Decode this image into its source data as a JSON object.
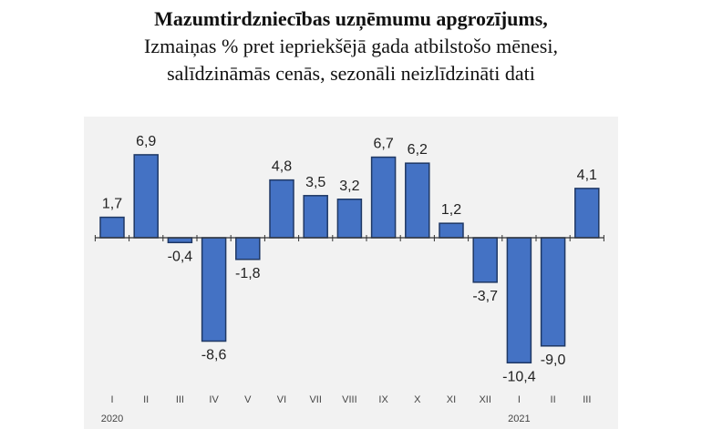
{
  "chart_data": {
    "type": "bar",
    "title": "Mazumtirdzniecības uzņēmumu apgrozījums,",
    "subtitle_lines": [
      "Izmaiņas % pret iepriekšējā gada atbilstošo mēnesi,",
      "salīdzināmās cenās, sezonāli neizlīdzināti dati"
    ],
    "categories": [
      "I",
      "II",
      "III",
      "IV",
      "V",
      "VI",
      "VII",
      "VIII",
      "IX",
      "X",
      "XI",
      "XII",
      "I",
      "II",
      "III"
    ],
    "year_labels": [
      {
        "index": 0,
        "label": "2020"
      },
      {
        "index": 12,
        "label": "2021"
      }
    ],
    "values": [
      1.7,
      6.9,
      -0.4,
      -8.6,
      -1.8,
      4.8,
      3.5,
      3.2,
      6.7,
      6.2,
      1.2,
      -3.7,
      -10.4,
      -9.0,
      4.1
    ],
    "data_labels": [
      "1,7",
      "6,9",
      "-0,4",
      "-8,6",
      "-1,8",
      "4,8",
      "3,5",
      "3,2",
      "6,7",
      "6,2",
      "1,2",
      "-3,7",
      "-10,4",
      "-9,0",
      "4,1"
    ],
    "ylim": [
      -12.6,
      10.1
    ],
    "grid": false,
    "colors": {
      "bar": "#4472C4",
      "bar_border": "#1F3864",
      "plot_bg": "#F2F2F2"
    }
  }
}
